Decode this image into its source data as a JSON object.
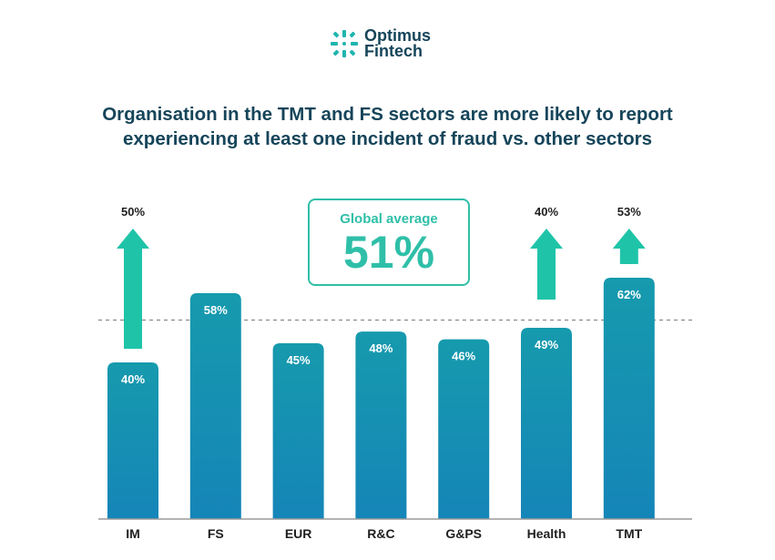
{
  "brand": {
    "name_line1": "Optimus",
    "name_line2": "Fintech",
    "logo_icon": "starburst-icon"
  },
  "colors": {
    "bar_top": "#169aad",
    "bar_bottom": "#1585b8",
    "arrow": "#1fc4a8",
    "accent": "#2fbfa8",
    "title": "#16455a"
  },
  "chart_data": {
    "type": "bar",
    "title": "Organisation in the TMT and FS sectors are more likely to report experiencing at least one incident of fraud vs. other sectors",
    "title_lines": [
      "Organisation in the TMT and FS sectors are more likely to report",
      "experiencing at least one incident of fraud vs. other sectors"
    ],
    "categories": [
      "IM",
      "FS",
      "EUR",
      "R&C",
      "G&PS",
      "Health",
      "TMT"
    ],
    "values": [
      40,
      58,
      45,
      48,
      46,
      49,
      62
    ],
    "value_labels": [
      "40%",
      "58%",
      "45%",
      "48%",
      "46%",
      "49%",
      "62%"
    ],
    "reference_line": {
      "label": "Global average",
      "value": 51,
      "value_label": "51%",
      "style": "dashed"
    },
    "arrows": [
      {
        "category": "IM",
        "label": "50%",
        "value": 50
      },
      {
        "category": "Health",
        "label": "40%",
        "value": 40
      },
      {
        "category": "TMT",
        "label": "53%",
        "value": 53
      }
    ],
    "xlabel": "",
    "ylabel": "",
    "ylim": [
      0,
      73
    ],
    "grid": false,
    "legend": "none"
  }
}
